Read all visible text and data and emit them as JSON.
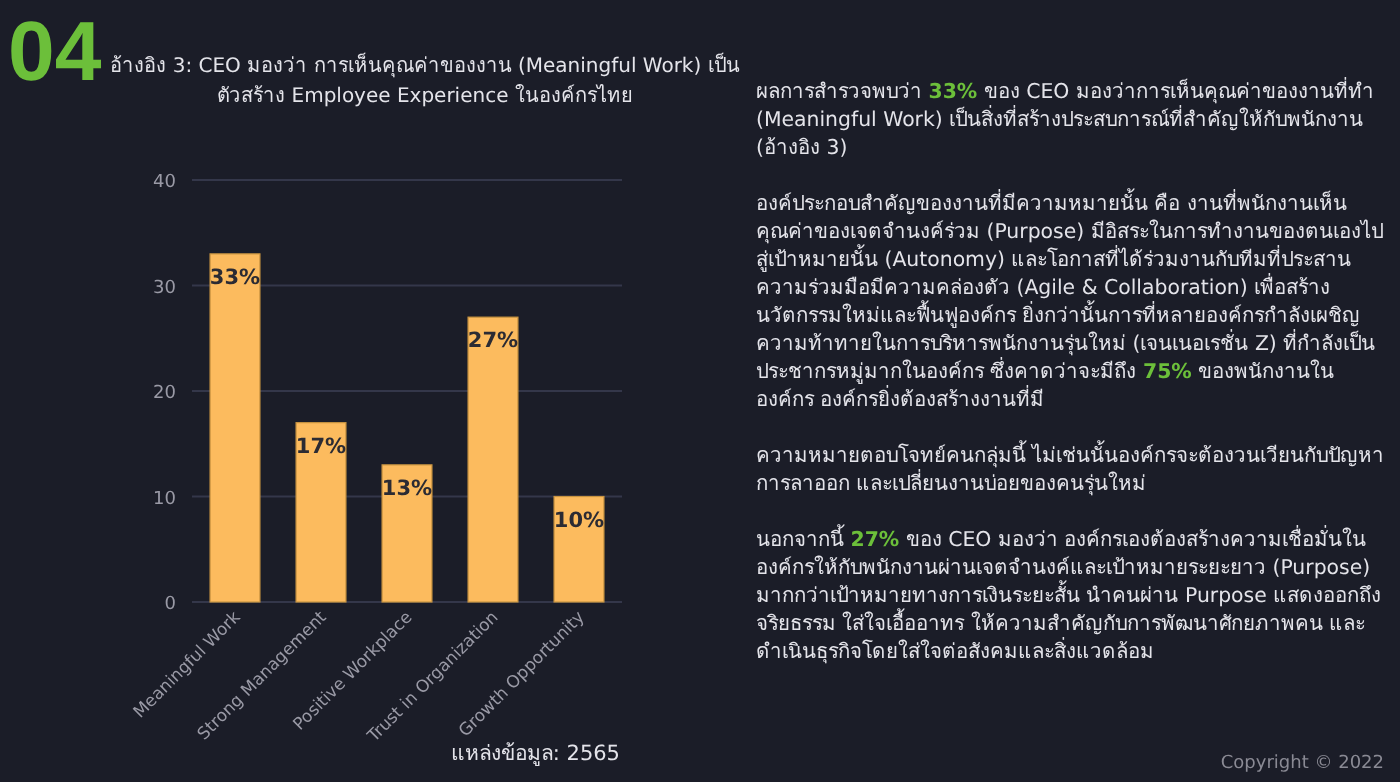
{
  "chart_data": {
    "type": "bar",
    "title": "อ้างอิง 3: CEO มองว่า การเห็นคุณค่าของงาน (Meaningful Work) เป็นตัวสร้าง Employee Experience ในองค์กรไทย",
    "categories": [
      "Meaningful Work",
      "Strong Management",
      "Positive Workplace",
      "Trust in Organization",
      "Growth Opportunity"
    ],
    "values": [
      33,
      17,
      13,
      27,
      10
    ],
    "value_labels": [
      "33%",
      "17%",
      "13%",
      "27%",
      "10%"
    ],
    "color": "#fcbb5e",
    "ylim": [
      0,
      40
    ],
    "yticks": [
      0,
      10,
      20,
      30,
      40
    ],
    "grid": "y",
    "annotations": [
      "04",
      "ผลการสำรวจพบว่า **33%** ของ CEO มองว่าการเห็นคุณค่าของงานที่ทำ (Meaningful Work) เป็นสิ่งที่สร้างประสบการณ์ที่สำคัญให้กับพนักงาน  (อ้างอิง 3)",
      "องค์ประกอบสำคัญของงานที่มีความหมายนั้น คือ งานที่พนักงานเห็นคุณค่าของเจตจำนงค์ร่วม (Purpose) มีอิสระในการทำงานของตนเองไปสู่เป้าหมายนั้น (Autonomy) และโอกาสที่ได้ร่วมงานกับทีมที่ประสานความร่วมมือมีความคล่องตัว (Agile & Collaboration) เพื่อสร้างนวัตกรรมใหม่และฟื้นฟูองค์กร ยิ่งกว่านั้นการที่หลายองค์กรกำลังเผชิญความท้าทายในการบริหารพนักงานรุ่นใหม่ (เจนเนอเรชั่น Z) ที่กำลังเป็นประชากรหมู่มากในองค์กร ซึ่งคาดว่าจะมีถึง **75%** ของพนักงานในองค์กร องค์กรยิ่งต้องสร้างงานที่มี",
      "ความหมายตอบโจทย์คนกลุ่มนี้ ไม่เช่นนั้นองค์กรจะต้องวนเวียนกับปัญหาการลาออก และเปลี่ยนงานบ่อยของคนรุ่นใหม่",
      "นอกจากนี้ **27%** ของ CEO มองว่า องค์กรเองต้องสร้างความเชื่อมั่นในองค์กรให้กับพนักงานผ่านเจตจำนงค์และเป้าหมายระยะยาว (Purpose) มากกว่าเป้าหมายทางการเงินระยะสั้น นำคนผ่าน Purpose แสดงออกถึงจริยธรรม ใส่ใจเอื้ออาทร  ให้ความสำคัญกับการพัฒนาศักยภาพคน และดำเนินธุรกิจโดยใส่ใจต่อสังคมและสิ่งแวดล้อม",
      "แหล่งข้อมูล: 2565",
      "Copyright © 2022"
    ]
  }
}
